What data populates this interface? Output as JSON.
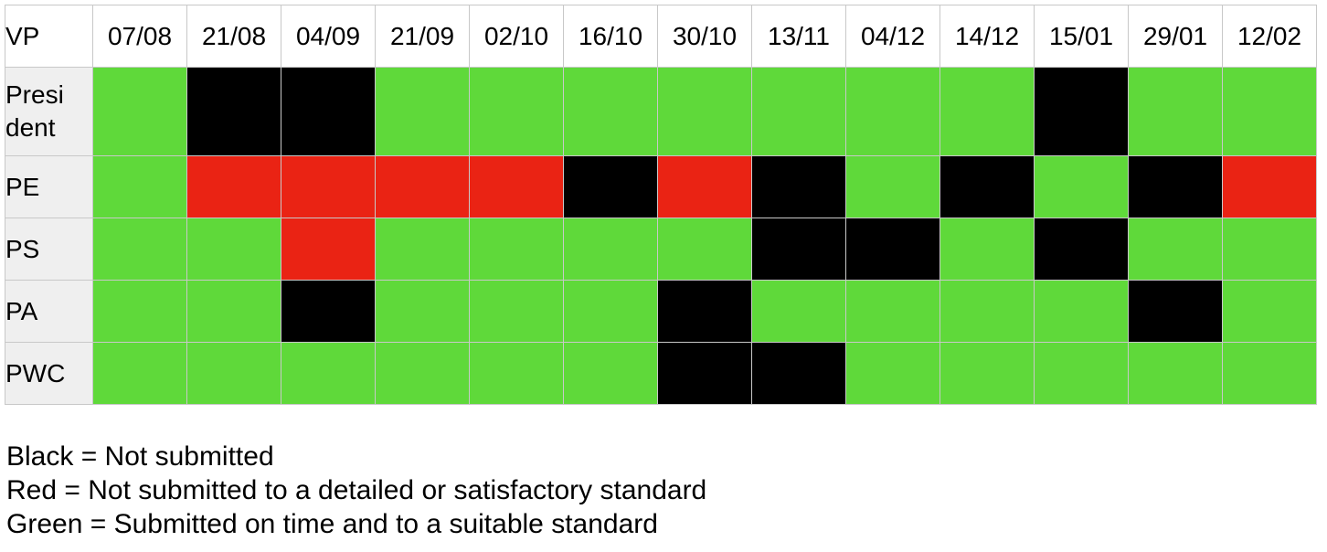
{
  "chart_data": {
    "type": "heatmap",
    "corner_label": "VP",
    "columns": [
      "07/08",
      "21/08",
      "04/09",
      "21/09",
      "02/10",
      "16/10",
      "30/10",
      "13/11",
      "04/12",
      "14/12",
      "15/01",
      "29/01",
      "12/02"
    ],
    "rows": [
      {
        "label": "President",
        "values": [
          "green",
          "black",
          "black",
          "green",
          "green",
          "green",
          "green",
          "green",
          "green",
          "green",
          "black",
          "green",
          "green"
        ]
      },
      {
        "label": "PE",
        "values": [
          "green",
          "red",
          "red",
          "red",
          "red",
          "black",
          "red",
          "black",
          "green",
          "black",
          "green",
          "black",
          "red"
        ]
      },
      {
        "label": "PS",
        "values": [
          "green",
          "green",
          "red",
          "green",
          "green",
          "green",
          "green",
          "black",
          "black",
          "green",
          "black",
          "green",
          "green"
        ]
      },
      {
        "label": "PA",
        "values": [
          "green",
          "green",
          "black",
          "green",
          "green",
          "green",
          "black",
          "green",
          "green",
          "green",
          "green",
          "black",
          "green"
        ]
      },
      {
        "label": "PWC",
        "values": [
          "green",
          "green",
          "green",
          "green",
          "green",
          "green",
          "black",
          "black",
          "green",
          "green",
          "green",
          "green",
          "green"
        ]
      }
    ],
    "colors": {
      "green": "#5fd93a",
      "red": "#ea2314",
      "black": "#000000"
    },
    "legend": [
      "Black = Not submitted",
      "Red = Not submitted to a detailed or satisfactory standard",
      "Green = Submitted on time and to a suitable standard"
    ]
  }
}
